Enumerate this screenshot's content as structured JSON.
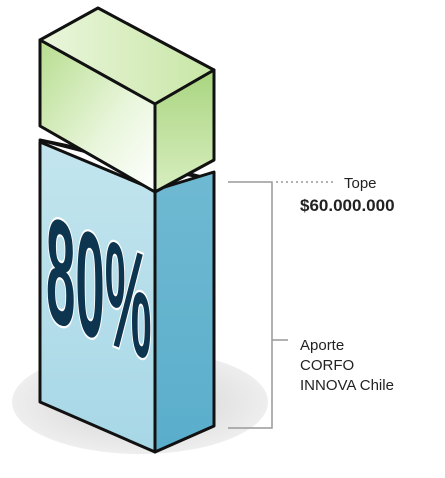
{
  "percentage_text": "80%",
  "cap": {
    "label": "Tope",
    "amount": "$60.000.000"
  },
  "contribution": {
    "line1": "Aporte",
    "line2": "CORFO",
    "line3": "INNOVA Chile"
  },
  "colors": {
    "top_block": "#c9e8a6",
    "main_block": "#b2dde9",
    "percentage": "#0d3550",
    "bracket": "#999999"
  }
}
